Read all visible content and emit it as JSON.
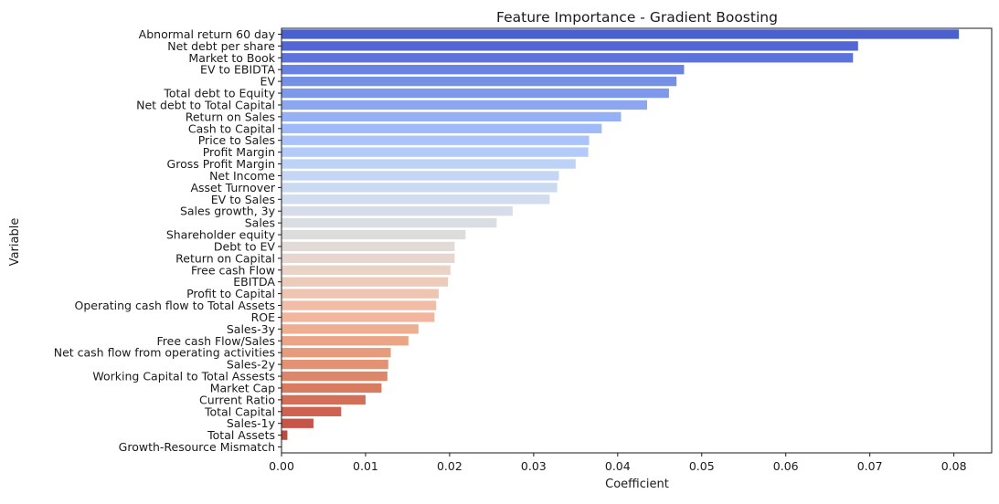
{
  "chart_data": {
    "type": "bar",
    "orientation": "horizontal",
    "title": "Feature Importance - Gradient Boosting",
    "xlabel": "Coefficient",
    "ylabel": "Variable",
    "xlim": [
      0,
      0.0845
    ],
    "xticks": [
      0.0,
      0.01,
      0.02,
      0.03,
      0.04,
      0.05,
      0.06,
      0.07,
      0.08
    ],
    "xtick_labels": [
      "0.00",
      "0.01",
      "0.02",
      "0.03",
      "0.04",
      "0.05",
      "0.06",
      "0.07",
      "0.08"
    ],
    "grid": false,
    "palette": "coolwarm",
    "categories": [
      "Abnormal return 60 day",
      "Net debt per share",
      "Market to Book",
      "EV to EBIDTA",
      "EV",
      "Total debt to Equity",
      "Net debt to Total Capital",
      "Return on Sales",
      "Cash to Capital",
      "Price to Sales",
      "Profit Margin",
      "Gross Profit Margin",
      "Net Income",
      "Asset Turnover",
      "EV to Sales",
      "Sales growth, 3y",
      "Sales",
      "Shareholder equity",
      "Debt to EV",
      "Return on Capital",
      "Free cash Flow",
      "EBITDA",
      "Profit to Capital",
      "Operating cash flow to Total Assets",
      "ROE",
      "Sales-3y",
      "Free cash Flow/Sales",
      "Net cash flow from operating activities",
      "Sales-2y",
      "Working Capital to Total Assests",
      "Market Cap",
      "Current Ratio",
      "Total Capital",
      "Sales-1y",
      "Total Assets",
      "Growth-Resource Mismatch"
    ],
    "values": [
      0.0806,
      0.0686,
      0.068,
      0.0479,
      0.047,
      0.0461,
      0.0435,
      0.0404,
      0.0381,
      0.0366,
      0.0365,
      0.035,
      0.033,
      0.0328,
      0.0319,
      0.0275,
      0.0256,
      0.0219,
      0.0206,
      0.0206,
      0.0201,
      0.0198,
      0.0187,
      0.0184,
      0.0182,
      0.0163,
      0.0151,
      0.013,
      0.0127,
      0.0126,
      0.0119,
      0.01,
      0.0071,
      0.0038,
      0.0007,
      0.0
    ],
    "colors": [
      "#4a60cf",
      "#5366d6",
      "#5c72dc",
      "#6a82e2",
      "#7590e5",
      "#7f99ea",
      "#8ca6f0",
      "#95b0f5",
      "#9fbaf8",
      "#aac3f9",
      "#b3cbf8",
      "#bcd2f6",
      "#c4d6f3",
      "#cadaf1",
      "#d1ddee",
      "#d6dce8",
      "#dadde2",
      "#dddcdc",
      "#e2dad6",
      "#e6d6cf",
      "#ead3c6",
      "#eccbbb",
      "#efc5b1",
      "#f1bda6",
      "#f1b69d",
      "#eeae92",
      "#eba586",
      "#e79b7d",
      "#e39273",
      "#de866a",
      "#d97b61",
      "#d36f58",
      "#cd6250",
      "#c75448",
      "#c04a3e",
      "#b83e36"
    ]
  }
}
